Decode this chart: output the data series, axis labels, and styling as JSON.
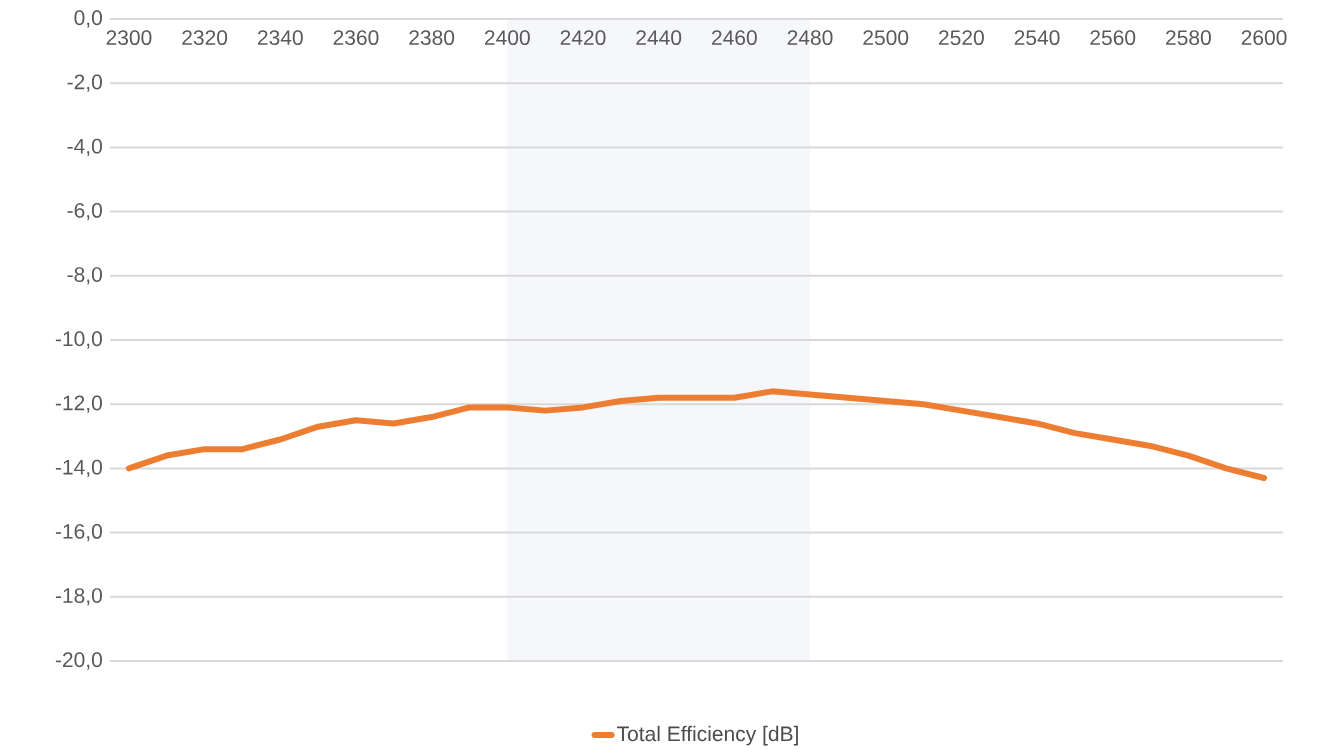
{
  "chart_data": {
    "type": "line",
    "x": [
      2300,
      2310,
      2320,
      2330,
      2340,
      2350,
      2360,
      2370,
      2380,
      2390,
      2400,
      2410,
      2420,
      2430,
      2440,
      2450,
      2460,
      2470,
      2480,
      2490,
      2500,
      2510,
      2520,
      2530,
      2540,
      2550,
      2560,
      2570,
      2580,
      2590,
      2600
    ],
    "series": [
      {
        "name": "Total Efficiency [dB]",
        "color": "#ed7d31",
        "values": [
          -14.0,
          -13.6,
          -13.4,
          -13.4,
          -13.1,
          -12.7,
          -12.5,
          -12.6,
          -12.4,
          -12.1,
          -12.1,
          -12.2,
          -12.1,
          -11.9,
          -11.8,
          -11.8,
          -11.8,
          -11.6,
          -11.7,
          -11.8,
          -11.9,
          -12.0,
          -12.2,
          -12.4,
          -12.6,
          -12.9,
          -13.1,
          -13.3,
          -13.6,
          -14.0,
          -14.3
        ]
      }
    ],
    "xlim": [
      2295,
      2605
    ],
    "xticks": [
      2300,
      2320,
      2340,
      2360,
      2380,
      2400,
      2420,
      2440,
      2460,
      2480,
      2500,
      2520,
      2540,
      2560,
      2580,
      2600
    ],
    "ylim": [
      -20,
      0
    ],
    "yticks": [
      {
        "value": 0,
        "label": "0,0"
      },
      {
        "value": -2,
        "label": "-2,0"
      },
      {
        "value": -4,
        "label": "-4,0"
      },
      {
        "value": -6,
        "label": "-6,0"
      },
      {
        "value": -8,
        "label": "-8,0"
      },
      {
        "value": -10,
        "label": "-10,0"
      },
      {
        "value": -12,
        "label": "-12,0"
      },
      {
        "value": -14,
        "label": "-14,0"
      },
      {
        "value": -16,
        "label": "-16,0"
      },
      {
        "value": -18,
        "label": "-18,0"
      },
      {
        "value": -20,
        "label": "-20,0"
      }
    ],
    "bands": [
      {
        "axis": "x",
        "from": 2400,
        "to": 2480,
        "color": "#f5f7fb"
      }
    ],
    "grid": "y",
    "legend": "bottom",
    "marker": "none",
    "line_style": "solid"
  }
}
